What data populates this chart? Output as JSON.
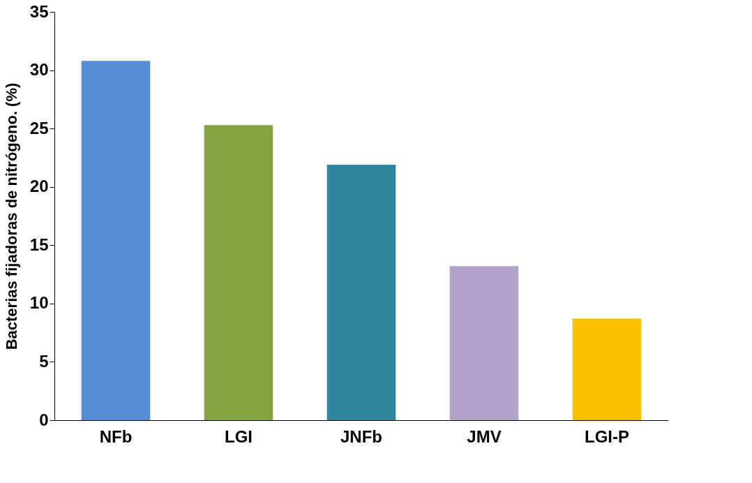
{
  "chart_data": {
    "type": "bar",
    "ylabel": "Bacterias fijadoras de nitrógeno. (%)",
    "categories": [
      "NFb",
      "LGI",
      "JNFb",
      "JMV",
      "LGI-P"
    ],
    "values": [
      30.8,
      25.3,
      21.9,
      13.2,
      8.7
    ],
    "colors": [
      "#558ed5",
      "#84a342",
      "#31859c",
      "#b3a2c7",
      "#f9c000"
    ],
    "ylim": [
      0,
      35
    ],
    "yticks": [
      0,
      5,
      10,
      15,
      20,
      25,
      30,
      35
    ],
    "grid": false
  }
}
